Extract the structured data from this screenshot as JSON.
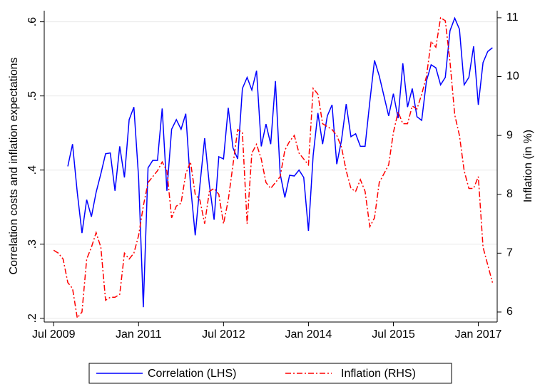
{
  "chart_data": {
    "type": "line",
    "y_label": "Correlation costs and inflation expectations",
    "y2_label": "Inflation (in %)",
    "x": [
      "2009-07",
      "2009-08",
      "2009-09",
      "2009-10",
      "2009-11",
      "2009-12",
      "2010-01",
      "2010-02",
      "2010-03",
      "2010-04",
      "2010-05",
      "2010-06",
      "2010-07",
      "2010-08",
      "2010-09",
      "2010-10",
      "2010-11",
      "2010-12",
      "2011-01",
      "2011-02",
      "2011-03",
      "2011-04",
      "2011-05",
      "2011-06",
      "2011-07",
      "2011-08",
      "2011-09",
      "2011-10",
      "2011-11",
      "2011-12",
      "2012-01",
      "2012-02",
      "2012-03",
      "2012-04",
      "2012-05",
      "2012-06",
      "2012-07",
      "2012-08",
      "2012-09",
      "2012-10",
      "2012-11",
      "2012-12",
      "2013-01",
      "2013-02",
      "2013-03",
      "2013-04",
      "2013-05",
      "2013-06",
      "2013-07",
      "2013-08",
      "2013-09",
      "2013-10",
      "2013-11",
      "2013-12",
      "2014-01",
      "2014-02",
      "2014-03",
      "2014-04",
      "2014-05",
      "2014-06",
      "2014-07",
      "2014-08",
      "2014-09",
      "2014-10",
      "2014-11",
      "2014-12",
      "2015-01",
      "2015-02",
      "2015-03",
      "2015-04",
      "2015-05",
      "2015-06",
      "2015-07",
      "2015-08",
      "2015-09",
      "2015-10",
      "2015-11",
      "2015-12",
      "2016-01",
      "2016-02",
      "2016-03",
      "2016-04",
      "2016-05",
      "2016-06",
      "2016-07",
      "2016-08",
      "2016-09",
      "2016-10",
      "2016-11",
      "2016-12",
      "2017-01",
      "2017-02",
      "2017-03",
      "2017-04"
    ],
    "series": [
      {
        "name": "Correlation (LHS)",
        "color": "#0000ff",
        "dash": false,
        "axis": "y",
        "values": [
          null,
          null,
          null,
          0.405,
          0.435,
          0.37,
          0.315,
          0.36,
          0.337,
          0.37,
          0.395,
          0.422,
          0.423,
          0.372,
          0.432,
          0.39,
          0.468,
          0.485,
          0.39,
          0.215,
          0.403,
          0.413,
          0.413,
          0.483,
          0.372,
          0.455,
          0.468,
          0.455,
          0.476,
          0.38,
          0.312,
          0.38,
          0.443,
          0.38,
          0.333,
          0.418,
          0.415,
          0.484,
          0.43,
          0.415,
          0.51,
          0.525,
          0.508,
          0.534,
          0.432,
          0.462,
          0.435,
          0.52,
          0.395,
          0.363,
          0.393,
          0.392,
          0.4,
          0.39,
          0.318,
          0.42,
          0.477,
          0.435,
          0.473,
          0.488,
          0.408,
          0.44,
          0.489,
          0.445,
          0.449,
          0.432,
          0.432,
          0.492,
          0.548,
          0.527,
          0.5,
          0.473,
          0.503,
          0.47,
          0.544,
          0.485,
          0.51,
          0.472,
          0.467,
          0.52,
          0.542,
          0.538,
          0.515,
          0.525,
          0.588,
          0.605,
          0.59,
          0.515,
          0.525,
          0.567,
          0.488,
          0.545,
          0.56,
          0.565
        ]
      },
      {
        "name": "Inflation (RHS)",
        "color": "#ff0000",
        "dash": true,
        "axis": "y2",
        "values": [
          7.05,
          7.0,
          6.9,
          6.5,
          6.4,
          5.9,
          6.0,
          6.9,
          7.1,
          7.35,
          7.1,
          6.2,
          6.25,
          6.25,
          6.3,
          7.0,
          6.9,
          7.0,
          7.3,
          7.8,
          8.2,
          8.3,
          8.4,
          8.55,
          8.4,
          7.6,
          7.8,
          7.85,
          8.35,
          8.55,
          8.0,
          7.9,
          7.5,
          8.05,
          8.1,
          8.0,
          7.5,
          7.9,
          8.5,
          9.1,
          9.05,
          7.5,
          8.7,
          8.85,
          8.6,
          8.2,
          8.1,
          8.2,
          8.3,
          8.75,
          8.9,
          9.0,
          8.7,
          8.6,
          8.5,
          9.8,
          9.7,
          9.2,
          9.15,
          9.1,
          9.0,
          8.8,
          8.4,
          8.1,
          8.05,
          8.25,
          8.05,
          7.45,
          7.6,
          8.2,
          8.35,
          8.5,
          9.05,
          9.4,
          9.2,
          9.2,
          9.5,
          9.45,
          9.7,
          10.0,
          10.6,
          10.5,
          11.0,
          10.95,
          10.25,
          9.35,
          9.0,
          8.4,
          8.1,
          8.1,
          8.3,
          7.1,
          6.8,
          6.5
        ]
      }
    ],
    "xlim": [
      "2009-05",
      "2017-05"
    ],
    "xticks": [
      {
        "value": "2009-07",
        "label": "Jul 2009"
      },
      {
        "value": "2011-01",
        "label": "Jan 2011"
      },
      {
        "value": "2012-07",
        "label": "Jul 2012"
      },
      {
        "value": "2014-01",
        "label": "Jan 2014"
      },
      {
        "value": "2015-07",
        "label": "Jul 2015"
      },
      {
        "value": "2017-01",
        "label": "Jan 2017"
      }
    ],
    "ylim": [
      0.195,
      0.615
    ],
    "yticks": [
      {
        "value": 0.2,
        "label": ".2"
      },
      {
        "value": 0.3,
        "label": ".3"
      },
      {
        "value": 0.4,
        "label": ".4"
      },
      {
        "value": 0.5,
        "label": ".5"
      },
      {
        "value": 0.6,
        "label": ".6"
      }
    ],
    "y2lim": [
      5.83,
      11.12
    ],
    "y2ticks": [
      6,
      7,
      8,
      9,
      10,
      11
    ],
    "grid": true,
    "legend": "bottom"
  }
}
